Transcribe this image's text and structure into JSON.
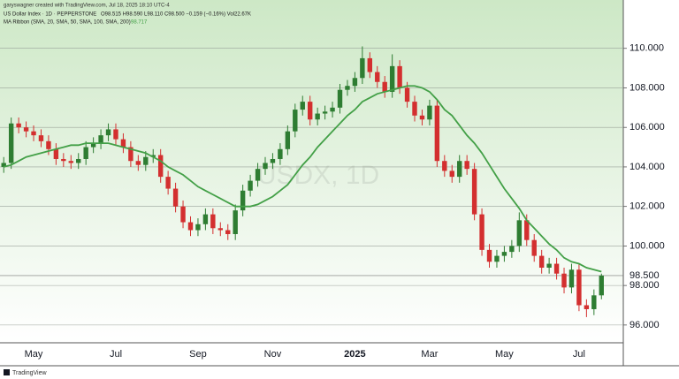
{
  "chart_data": {
    "type": "candlestick",
    "credit": "garyswagner created with TradingView.com, Jul 18, 2025 18:10 UTC-4",
    "title": "US Dollar Index · 1D · PEPPERSTONE",
    "ohlc_text": "O98.515 H98.590 L98.110 C98.500 −0.159 (−0.16%) Vol22.67K",
    "indicator_value": "98.717",
    "watermark": "USDX, 1D",
    "footer": "TradingView",
    "categories": [
      null,
      null,
      null,
      null,
      "May",
      null,
      null,
      null,
      null,
      null,
      null,
      null,
      null,
      null,
      null,
      "Jul",
      null,
      null,
      null,
      null,
      null,
      null,
      null,
      null,
      null,
      null,
      "Sep",
      null,
      null,
      null,
      null,
      null,
      null,
      null,
      null,
      null,
      "Nov",
      null,
      null,
      null,
      null,
      null,
      null,
      null,
      null,
      null,
      null,
      "2025",
      null,
      null,
      null,
      null,
      null,
      null,
      null,
      null,
      null,
      "Mar",
      null,
      null,
      null,
      null,
      null,
      null,
      null,
      null,
      null,
      "May",
      null,
      null,
      null,
      null,
      null,
      null,
      null,
      null,
      null,
      "Jul",
      null,
      null,
      null
    ],
    "open": [
      104.0,
      104.2,
      106.2,
      106.0,
      105.8,
      105.6,
      105.3,
      104.9,
      104.4,
      104.3,
      104.2,
      104.4,
      105.0,
      105.2,
      105.6,
      105.9,
      105.4,
      105.0,
      104.3,
      104.1,
      104.5,
      104.6,
      103.5,
      102.9,
      102.0,
      101.2,
      100.8,
      101.1,
      101.6,
      100.9,
      100.8,
      100.6,
      101.8,
      102.8,
      103.3,
      103.9,
      104.2,
      104.4,
      104.9,
      105.8,
      106.9,
      107.3,
      106.4,
      106.7,
      106.8,
      107.0,
      107.9,
      108.1,
      108.5,
      109.5,
      108.8,
      108.3,
      107.8,
      109.1,
      108.0,
      107.3,
      106.6,
      106.4,
      107.1,
      104.3,
      103.8,
      103.5,
      104.3,
      103.9,
      101.6,
      99.8,
      99.2,
      99.5,
      99.7,
      100.0,
      101.3,
      100.3,
      99.5,
      98.9,
      99.1,
      98.6,
      97.9,
      98.8,
      97.0,
      96.8,
      97.5
    ],
    "high": [
      104.5,
      106.5,
      106.5,
      106.3,
      106.1,
      105.9,
      105.6,
      105.2,
      104.7,
      104.6,
      104.7,
      105.3,
      105.5,
      105.9,
      106.2,
      106.2,
      105.7,
      105.3,
      104.6,
      104.8,
      104.9,
      104.9,
      103.8,
      103.2,
      102.3,
      101.5,
      101.4,
      101.9,
      101.9,
      101.2,
      101.1,
      102.1,
      103.1,
      103.6,
      104.2,
      104.5,
      104.7,
      105.2,
      106.1,
      107.2,
      107.6,
      107.6,
      107.0,
      107.1,
      107.3,
      108.2,
      108.4,
      108.8,
      110.1,
      109.8,
      109.1,
      108.6,
      109.7,
      109.4,
      108.3,
      107.6,
      106.9,
      107.4,
      107.4,
      104.6,
      104.1,
      104.6,
      104.6,
      104.2,
      101.9,
      100.1,
      99.8,
      100.0,
      100.3,
      101.7,
      101.6,
      100.6,
      99.8,
      99.4,
      99.4,
      98.9,
      99.1,
      99.1,
      97.3,
      97.8,
      98.6
    ],
    "low": [
      103.7,
      103.9,
      105.7,
      105.5,
      105.3,
      105.0,
      104.6,
      104.1,
      104.0,
      103.9,
      103.9,
      104.1,
      104.7,
      104.9,
      105.3,
      105.1,
      104.7,
      104.0,
      103.8,
      103.8,
      104.2,
      103.2,
      102.6,
      101.7,
      100.9,
      100.5,
      100.5,
      100.8,
      100.6,
      100.5,
      100.3,
      100.3,
      101.5,
      102.5,
      103.0,
      103.6,
      103.9,
      104.1,
      104.6,
      105.5,
      106.6,
      106.1,
      106.1,
      106.4,
      106.5,
      106.7,
      107.6,
      107.8,
      108.2,
      108.5,
      108.0,
      107.5,
      107.5,
      107.7,
      107.0,
      106.3,
      106.1,
      106.1,
      104.0,
      103.5,
      103.2,
      103.2,
      103.6,
      101.3,
      99.5,
      98.9,
      98.9,
      99.2,
      99.4,
      99.7,
      100.0,
      99.2,
      98.6,
      98.6,
      98.3,
      97.6,
      97.6,
      96.7,
      96.4,
      96.5,
      97.3
    ],
    "close": [
      104.2,
      106.2,
      106.0,
      105.8,
      105.6,
      105.3,
      104.9,
      104.4,
      104.3,
      104.2,
      104.4,
      105.0,
      105.2,
      105.6,
      105.9,
      105.4,
      105.0,
      104.3,
      104.1,
      104.5,
      104.6,
      103.5,
      102.9,
      102.0,
      101.2,
      100.8,
      101.1,
      101.6,
      100.9,
      100.8,
      100.6,
      101.8,
      102.8,
      103.3,
      103.9,
      104.2,
      104.4,
      104.9,
      105.8,
      106.9,
      107.3,
      106.4,
      106.7,
      106.8,
      107.0,
      107.9,
      108.1,
      108.5,
      109.5,
      108.8,
      108.3,
      107.8,
      109.1,
      108.0,
      107.3,
      106.6,
      106.4,
      107.1,
      104.3,
      103.8,
      103.5,
      104.3,
      103.9,
      101.6,
      99.8,
      99.2,
      99.5,
      99.7,
      100.0,
      101.3,
      100.3,
      99.5,
      98.9,
      99.1,
      98.6,
      97.9,
      98.8,
      97.0,
      96.8,
      97.5,
      98.5
    ],
    "up_color": "#2e7d32",
    "down_color": "#d32f2f",
    "overlays": [
      {
        "name": "MA Ribbon (SMA, 20, SMA, 50, SMA, 100, SMA, 200)",
        "color": "#43a047",
        "values": [
          104.0,
          104.1,
          104.3,
          104.5,
          104.6,
          104.7,
          104.8,
          104.9,
          105.0,
          105.1,
          105.1,
          105.2,
          105.2,
          105.2,
          105.2,
          105.1,
          105.0,
          104.9,
          104.8,
          104.7,
          104.5,
          104.3,
          104.0,
          103.8,
          103.6,
          103.3,
          103.0,
          102.8,
          102.6,
          102.4,
          102.2,
          102.0,
          102.0,
          102.0,
          102.1,
          102.3,
          102.5,
          102.8,
          103.1,
          103.6,
          104.1,
          104.5,
          105.0,
          105.4,
          105.8,
          106.2,
          106.6,
          106.9,
          107.3,
          107.5,
          107.7,
          107.8,
          107.9,
          108.0,
          108.1,
          108.1,
          108.0,
          107.8,
          107.4,
          106.9,
          106.6,
          106.1,
          105.6,
          105.2,
          104.7,
          104.1,
          103.5,
          102.9,
          102.4,
          101.9,
          101.3,
          100.9,
          100.5,
          100.1,
          99.8,
          99.4,
          99.2,
          99.1,
          98.9,
          98.8,
          98.7
        ]
      }
    ],
    "ylim": [
      95.1,
      112.0
    ],
    "yticks": [
      {
        "value": 96,
        "label": "96.000"
      },
      {
        "value": 98,
        "label": "98.000"
      },
      {
        "value": 100,
        "label": "100.000"
      },
      {
        "value": 102,
        "label": "102.000"
      },
      {
        "value": 104,
        "label": "104.000"
      },
      {
        "value": 106,
        "label": "106.000"
      },
      {
        "value": 108,
        "label": "108.000"
      },
      {
        "value": 110,
        "label": "110.000"
      }
    ],
    "last_price": {
      "value": 98.5,
      "label": "98.500"
    },
    "grid": true
  }
}
